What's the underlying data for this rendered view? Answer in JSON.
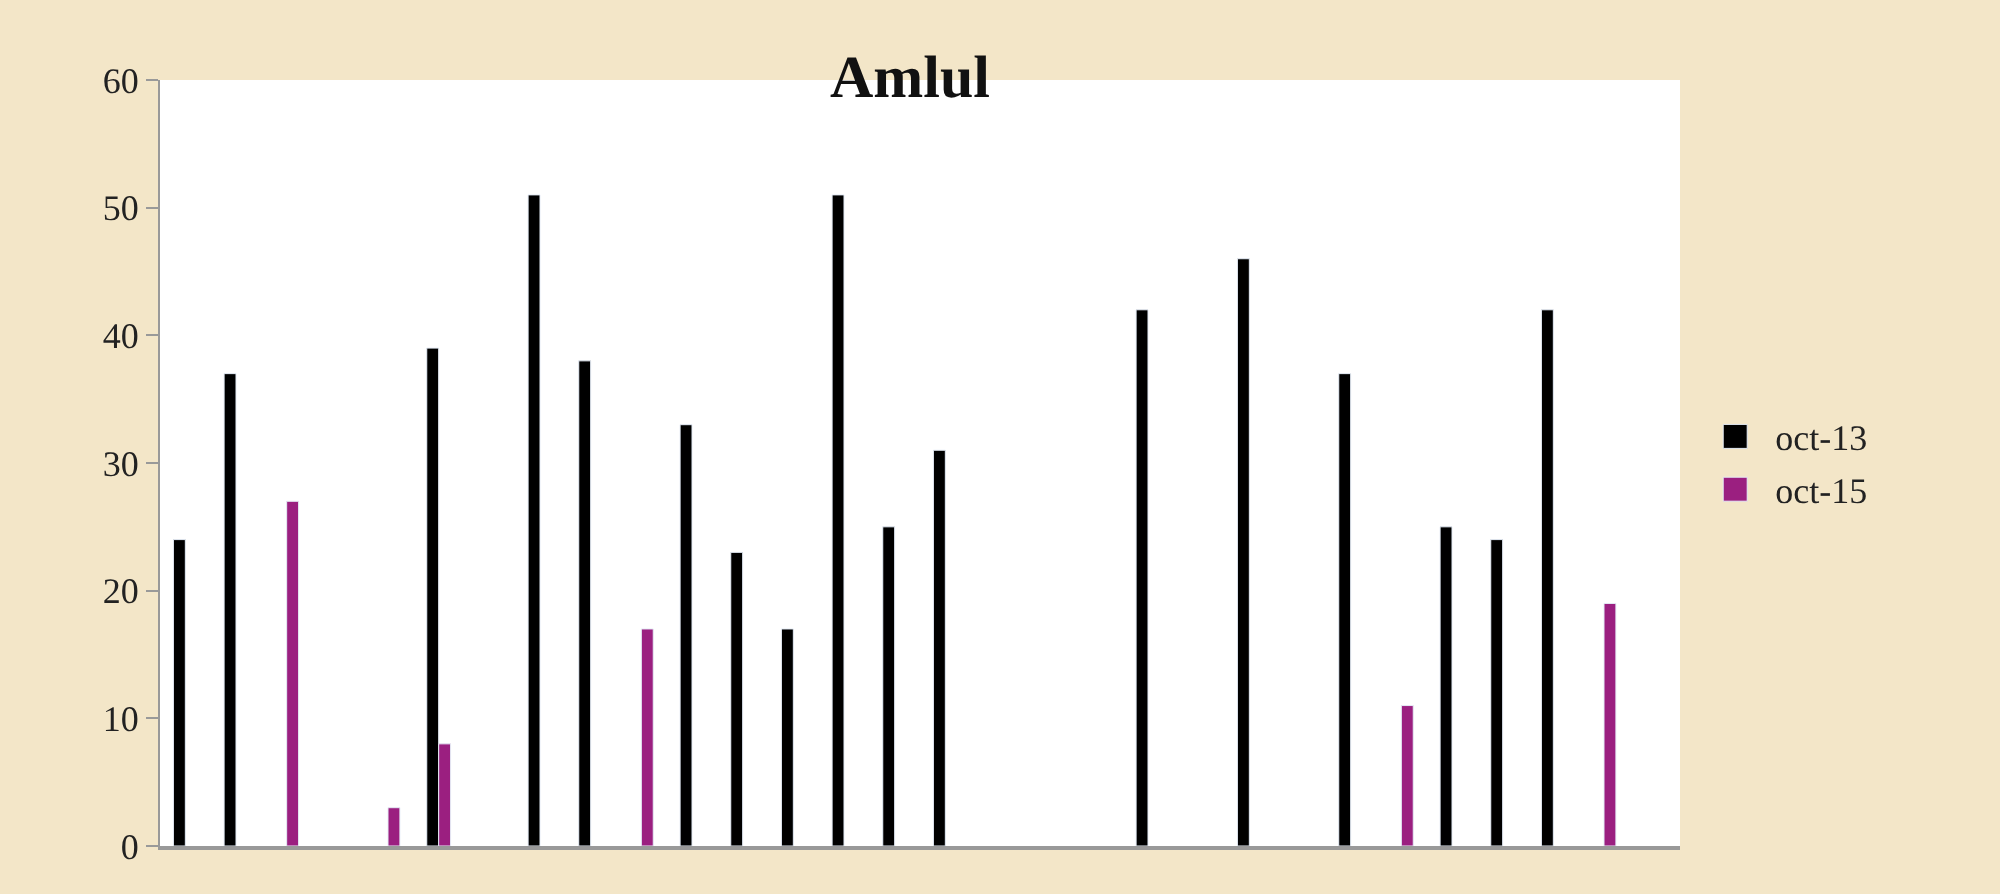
{
  "chart_data": {
    "type": "bar",
    "title": "Amlul",
    "categories": [
      null,
      null,
      null,
      null,
      null,
      null,
      null,
      null,
      null,
      null,
      null,
      null,
      null,
      null,
      null,
      null,
      null,
      null,
      null,
      null,
      null,
      null,
      null,
      null,
      null,
      null,
      null,
      null,
      null,
      null
    ],
    "series": [
      {
        "name": "oct-13",
        "color": "#000000",
        "values": [
          24,
          37,
          null,
          null,
          null,
          39,
          null,
          51,
          38,
          null,
          33,
          23,
          17,
          51,
          25,
          31,
          null,
          null,
          null,
          42,
          null,
          46,
          null,
          37,
          null,
          25,
          24,
          42,
          null,
          null
        ]
      },
      {
        "name": "oct-15",
        "color": "#9b1f80",
        "values": [
          null,
          null,
          27,
          null,
          3,
          8,
          null,
          null,
          null,
          17,
          null,
          null,
          null,
          null,
          null,
          null,
          null,
          null,
          null,
          null,
          null,
          null,
          null,
          null,
          11,
          null,
          null,
          null,
          19,
          null
        ]
      }
    ],
    "ylim": [
      0,
      60
    ],
    "yticks": [
      0,
      10,
      20,
      30,
      40,
      50,
      60
    ],
    "legend": "right",
    "tick_labels": "y"
  }
}
